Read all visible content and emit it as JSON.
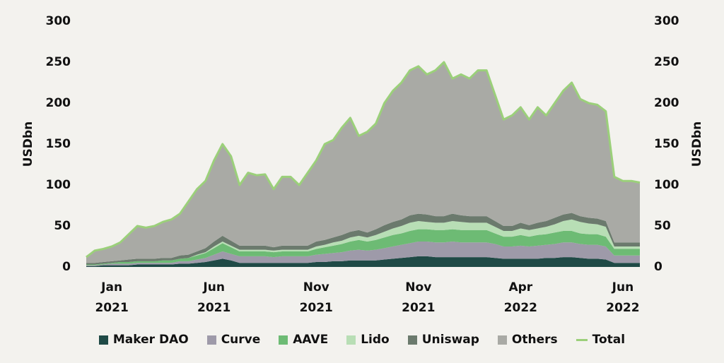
{
  "chart_data": {
    "type": "stacked_area",
    "y_label": "USDbn",
    "y2_label": "USDbn",
    "categories": [
      null,
      null,
      null,
      "Jan 2021",
      null,
      null,
      null,
      null,
      null,
      null,
      null,
      null,
      null,
      null,
      null,
      "Jun 2021",
      null,
      null,
      null,
      null,
      null,
      null,
      null,
      null,
      null,
      null,
      null,
      "Nov 2021",
      null,
      null,
      null,
      null,
      null,
      null,
      null,
      null,
      null,
      null,
      null,
      "Nov 2021",
      null,
      null,
      null,
      null,
      null,
      null,
      null,
      null,
      null,
      null,
      null,
      "Apr 2022",
      null,
      null,
      null,
      null,
      null,
      null,
      null,
      null,
      null,
      null,
      null,
      "Jun 2022",
      null,
      null
    ],
    "series": [
      {
        "name": "Maker DAO",
        "color": "#1f4a46",
        "values": [
          1,
          1,
          2,
          2,
          2,
          2,
          3,
          3,
          3,
          3,
          3,
          4,
          4,
          5,
          6,
          8,
          10,
          8,
          5,
          5,
          5,
          5,
          5,
          5,
          5,
          5,
          5,
          6,
          6,
          7,
          7,
          8,
          8,
          8,
          8,
          9,
          10,
          11,
          12,
          13,
          13,
          12,
          12,
          12,
          12,
          12,
          12,
          12,
          11,
          10,
          10,
          10,
          10,
          10,
          11,
          11,
          12,
          12,
          11,
          10,
          10,
          9,
          5,
          5,
          5,
          5
        ]
      },
      {
        "name": "Curve",
        "color": "#9e9aa9",
        "values": [
          1,
          1,
          1,
          2,
          2,
          2,
          2,
          2,
          2,
          2,
          2,
          3,
          3,
          4,
          5,
          7,
          9,
          8,
          8,
          8,
          8,
          8,
          7,
          8,
          8,
          8,
          8,
          9,
          10,
          10,
          11,
          12,
          13,
          12,
          13,
          14,
          15,
          16,
          17,
          18,
          18,
          18,
          18,
          19,
          18,
          18,
          18,
          18,
          17,
          15,
          15,
          16,
          15,
          16,
          16,
          17,
          18,
          18,
          17,
          17,
          17,
          16,
          9,
          9,
          9,
          9
        ]
      },
      {
        "name": "AAVE",
        "color": "#6dbb74",
        "values": [
          1,
          1,
          1,
          1,
          2,
          2,
          2,
          2,
          2,
          3,
          3,
          3,
          4,
          5,
          6,
          8,
          10,
          8,
          6,
          6,
          6,
          6,
          6,
          6,
          6,
          6,
          6,
          7,
          8,
          9,
          10,
          11,
          12,
          11,
          12,
          13,
          14,
          14,
          15,
          15,
          15,
          15,
          15,
          15,
          15,
          15,
          15,
          15,
          13,
          12,
          12,
          13,
          12,
          13,
          13,
          14,
          14,
          14,
          13,
          13,
          13,
          12,
          8,
          8,
          8,
          8
        ]
      },
      {
        "name": "Lido",
        "color": "#b8deb5",
        "values": [
          0,
          0,
          0,
          0,
          0,
          0,
          0,
          0,
          0,
          0,
          0,
          0,
          0,
          1,
          1,
          2,
          2,
          2,
          2,
          2,
          2,
          2,
          2,
          2,
          2,
          2,
          2,
          3,
          3,
          4,
          4,
          5,
          5,
          5,
          6,
          7,
          8,
          9,
          10,
          10,
          9,
          9,
          9,
          10,
          10,
          9,
          9,
          9,
          8,
          7,
          7,
          8,
          8,
          8,
          9,
          10,
          12,
          14,
          14,
          13,
          12,
          12,
          3,
          3,
          3,
          3
        ]
      },
      {
        "name": "Uniswap",
        "color": "#6b7a6d",
        "values": [
          2,
          2,
          2,
          2,
          2,
          3,
          3,
          3,
          3,
          3,
          3,
          4,
          4,
          4,
          5,
          6,
          7,
          6,
          5,
          5,
          5,
          5,
          4,
          5,
          5,
          5,
          5,
          6,
          6,
          6,
          7,
          7,
          7,
          6,
          7,
          8,
          8,
          8,
          9,
          9,
          9,
          8,
          8,
          9,
          8,
          8,
          8,
          8,
          7,
          6,
          6,
          7,
          6,
          7,
          7,
          8,
          8,
          8,
          7,
          7,
          7,
          7,
          5,
          5,
          5,
          5
        ]
      },
      {
        "name": "Others",
        "color": "#a9aaa5",
        "values": [
          7,
          15,
          16,
          18,
          22,
          31,
          40,
          38,
          40,
          44,
          47,
          51,
          65,
          76,
          82,
          99,
          112,
          103,
          74,
          89,
          86,
          87,
          71,
          84,
          84,
          74,
          89,
          99,
          117,
          119,
          131,
          139,
          115,
          123,
          129,
          149,
          160,
          167,
          177,
          180,
          171,
          178,
          188,
          165,
          172,
          168,
          178,
          178,
          154,
          130,
          135,
          141,
          129,
          141,
          129,
          140,
          151,
          159,
          143,
          140,
          139,
          134,
          80,
          75,
          75,
          73
        ]
      },
      {
        "name": "Total",
        "color": "#9bd07a",
        "style": "line",
        "values": [
          12,
          20,
          22,
          25,
          30,
          40,
          50,
          48,
          50,
          55,
          58,
          65,
          80,
          95,
          105,
          130,
          150,
          135,
          100,
          115,
          112,
          113,
          95,
          110,
          110,
          100,
          115,
          130,
          150,
          155,
          170,
          182,
          160,
          165,
          175,
          200,
          215,
          225,
          240,
          245,
          235,
          240,
          250,
          230,
          235,
          230,
          240,
          240,
          210,
          180,
          185,
          195,
          180,
          195,
          185,
          200,
          215,
          225,
          205,
          200,
          198,
          190,
          110,
          105,
          105,
          103
        ]
      }
    ],
    "ylim": [
      0,
      300
    ],
    "yticks": [
      0,
      50,
      100,
      150,
      200,
      250,
      300
    ],
    "y2lim": [
      0,
      300
    ],
    "y2ticks": [
      0,
      50,
      100,
      150,
      200,
      250,
      300
    ]
  }
}
